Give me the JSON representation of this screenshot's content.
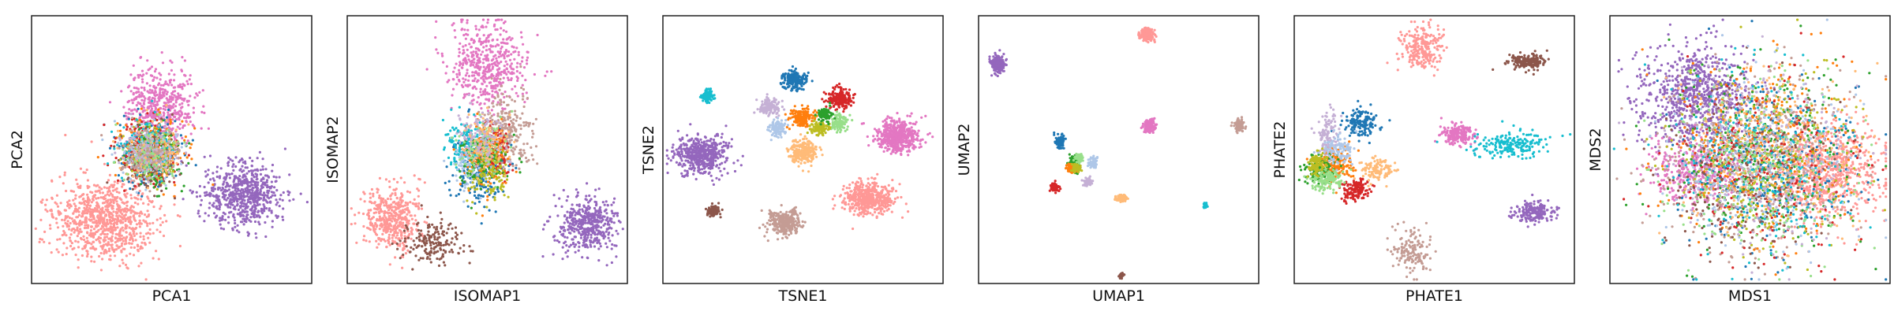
{
  "chart_data": [
    {
      "type": "scatter",
      "title": "",
      "xlabel": "PCA1",
      "ylabel": "PCA2",
      "clusters": [
        {
          "color": "#ff9896",
          "center": [
            0.26,
            0.76
          ],
          "spread": [
            0.09,
            0.075
          ],
          "n": 900
        },
        {
          "color": "#9467bd",
          "center": [
            0.76,
            0.67
          ],
          "spread": [
            0.07,
            0.06
          ],
          "n": 650
        },
        {
          "color": "#e377c2",
          "center": [
            0.46,
            0.34
          ],
          "spread": [
            0.06,
            0.07
          ],
          "n": 500
        },
        {
          "color": "#1f77b4",
          "center": [
            0.42,
            0.52
          ],
          "spread": [
            0.06,
            0.065
          ],
          "n": 200
        },
        {
          "color": "#ff7f0e",
          "center": [
            0.43,
            0.5
          ],
          "spread": [
            0.06,
            0.06
          ],
          "n": 200
        },
        {
          "color": "#d62728",
          "center": [
            0.41,
            0.51
          ],
          "spread": [
            0.05,
            0.06
          ],
          "n": 180
        },
        {
          "color": "#2ca02c",
          "center": [
            0.44,
            0.52
          ],
          "spread": [
            0.05,
            0.06
          ],
          "n": 160
        },
        {
          "color": "#8c564b",
          "center": [
            0.42,
            0.54
          ],
          "spread": [
            0.05,
            0.05
          ],
          "n": 140
        },
        {
          "color": "#bcbd22",
          "center": [
            0.43,
            0.5
          ],
          "spread": [
            0.05,
            0.05
          ],
          "n": 120
        },
        {
          "color": "#17becf",
          "center": [
            0.42,
            0.49
          ],
          "spread": [
            0.05,
            0.05
          ],
          "n": 110
        },
        {
          "color": "#aec7e8",
          "center": [
            0.42,
            0.51
          ],
          "spread": [
            0.05,
            0.05
          ],
          "n": 110
        },
        {
          "color": "#ffbb78",
          "center": [
            0.43,
            0.51
          ],
          "spread": [
            0.05,
            0.05
          ],
          "n": 110
        },
        {
          "color": "#98df8a",
          "center": [
            0.42,
            0.53
          ],
          "spread": [
            0.05,
            0.05
          ],
          "n": 100
        },
        {
          "color": "#c5b0d5",
          "center": [
            0.42,
            0.5
          ],
          "spread": [
            0.05,
            0.05
          ],
          "n": 100
        },
        {
          "color": "#c49c94",
          "center": [
            0.43,
            0.52
          ],
          "spread": [
            0.05,
            0.05
          ],
          "n": 100
        }
      ]
    },
    {
      "type": "scatter",
      "title": "",
      "xlabel": "ISOMAP1",
      "ylabel": "ISOMAP2",
      "clusters": [
        {
          "color": "#e377c2",
          "center": [
            0.5,
            0.18
          ],
          "spread": [
            0.07,
            0.08
          ],
          "n": 500
        },
        {
          "color": "#ff9896",
          "center": [
            0.16,
            0.76
          ],
          "spread": [
            0.05,
            0.055
          ],
          "n": 450
        },
        {
          "color": "#9467bd",
          "center": [
            0.86,
            0.78
          ],
          "spread": [
            0.05,
            0.055
          ],
          "n": 450
        },
        {
          "color": "#8c564b",
          "center": [
            0.3,
            0.85
          ],
          "spread": [
            0.05,
            0.04
          ],
          "n": 180
        },
        {
          "color": "#1f77b4",
          "center": [
            0.47,
            0.57
          ],
          "spread": [
            0.05,
            0.07
          ],
          "n": 250
        },
        {
          "color": "#c49c94",
          "center": [
            0.57,
            0.43
          ],
          "spread": [
            0.05,
            0.07
          ],
          "n": 250
        },
        {
          "color": "#d62728",
          "center": [
            0.52,
            0.5
          ],
          "spread": [
            0.03,
            0.05
          ],
          "n": 150
        },
        {
          "color": "#17becf",
          "center": [
            0.43,
            0.48
          ],
          "spread": [
            0.04,
            0.05
          ],
          "n": 130
        },
        {
          "color": "#ff7f0e",
          "center": [
            0.5,
            0.52
          ],
          "spread": [
            0.04,
            0.06
          ],
          "n": 140
        },
        {
          "color": "#aec7e8",
          "center": [
            0.45,
            0.55
          ],
          "spread": [
            0.04,
            0.05
          ],
          "n": 120
        },
        {
          "color": "#2ca02c",
          "center": [
            0.49,
            0.55
          ],
          "spread": [
            0.04,
            0.05
          ],
          "n": 100
        },
        {
          "color": "#98df8a",
          "center": [
            0.48,
            0.5
          ],
          "spread": [
            0.04,
            0.05
          ],
          "n": 100
        },
        {
          "color": "#bcbd22",
          "center": [
            0.51,
            0.58
          ],
          "spread": [
            0.04,
            0.05
          ],
          "n": 100
        },
        {
          "color": "#ffbb78",
          "center": [
            0.5,
            0.46
          ],
          "spread": [
            0.04,
            0.05
          ],
          "n": 100
        },
        {
          "color": "#c5b0d5",
          "center": [
            0.47,
            0.45
          ],
          "spread": [
            0.04,
            0.05
          ],
          "n": 100
        }
      ]
    },
    {
      "type": "scatter",
      "title": "",
      "xlabel": "TSNE1",
      "ylabel": "TSNE2",
      "clusters": [
        {
          "color": "#9467bd",
          "center": [
            0.14,
            0.52
          ],
          "spread": [
            0.045,
            0.035
          ],
          "n": 500
        },
        {
          "color": "#e377c2",
          "center": [
            0.84,
            0.45
          ],
          "spread": [
            0.04,
            0.03
          ],
          "n": 500
        },
        {
          "color": "#ff9896",
          "center": [
            0.73,
            0.68
          ],
          "spread": [
            0.045,
            0.03
          ],
          "n": 500
        },
        {
          "color": "#c49c94",
          "center": [
            0.44,
            0.77
          ],
          "spread": [
            0.03,
            0.022
          ],
          "n": 300
        },
        {
          "color": "#ffbb78",
          "center": [
            0.5,
            0.51
          ],
          "spread": [
            0.025,
            0.022
          ],
          "n": 250
        },
        {
          "color": "#1f77b4",
          "center": [
            0.47,
            0.24
          ],
          "spread": [
            0.022,
            0.018
          ],
          "n": 200
        },
        {
          "color": "#d62728",
          "center": [
            0.63,
            0.31
          ],
          "spread": [
            0.022,
            0.018
          ],
          "n": 200
        },
        {
          "color": "#ff7f0e",
          "center": [
            0.5,
            0.38
          ],
          "spread": [
            0.02,
            0.018
          ],
          "n": 180
        },
        {
          "color": "#c5b0d5",
          "center": [
            0.38,
            0.34
          ],
          "spread": [
            0.018,
            0.015
          ],
          "n": 150
        },
        {
          "color": "#98df8a",
          "center": [
            0.63,
            0.4
          ],
          "spread": [
            0.015,
            0.015
          ],
          "n": 120
        },
        {
          "color": "#aec7e8",
          "center": [
            0.41,
            0.42
          ],
          "spread": [
            0.015,
            0.015
          ],
          "n": 120
        },
        {
          "color": "#bcbd22",
          "center": [
            0.56,
            0.42
          ],
          "spread": [
            0.014,
            0.012
          ],
          "n": 110
        },
        {
          "color": "#2ca02c",
          "center": [
            0.58,
            0.37
          ],
          "spread": [
            0.012,
            0.012
          ],
          "n": 100
        },
        {
          "color": "#17becf",
          "center": [
            0.16,
            0.3
          ],
          "spread": [
            0.01,
            0.012
          ],
          "n": 100
        },
        {
          "color": "#8c564b",
          "center": [
            0.18,
            0.73
          ],
          "spread": [
            0.012,
            0.01
          ],
          "n": 100
        }
      ]
    },
    {
      "type": "scatter",
      "title": "",
      "xlabel": "UMAP1",
      "ylabel": "UMAP2",
      "clusters": [
        {
          "color": "#9467bd",
          "center": [
            0.07,
            0.18
          ],
          "spread": [
            0.012,
            0.015
          ],
          "n": 200
        },
        {
          "color": "#ff9896",
          "center": [
            0.6,
            0.07
          ],
          "spread": [
            0.012,
            0.012
          ],
          "n": 200
        },
        {
          "color": "#e377c2",
          "center": [
            0.61,
            0.41
          ],
          "spread": [
            0.01,
            0.012
          ],
          "n": 180
        },
        {
          "color": "#c49c94",
          "center": [
            0.93,
            0.41
          ],
          "spread": [
            0.008,
            0.01
          ],
          "n": 120
        },
        {
          "color": "#17becf",
          "center": [
            0.81,
            0.71
          ],
          "spread": [
            0.003,
            0.005
          ],
          "n": 30
        },
        {
          "color": "#ffbb78",
          "center": [
            0.51,
            0.68
          ],
          "spread": [
            0.01,
            0.006
          ],
          "n": 100
        },
        {
          "color": "#8c564b",
          "center": [
            0.51,
            0.97
          ],
          "spread": [
            0.004,
            0.004
          ],
          "n": 40
        },
        {
          "color": "#1f77b4",
          "center": [
            0.29,
            0.47
          ],
          "spread": [
            0.008,
            0.012
          ],
          "n": 80
        },
        {
          "color": "#d62728",
          "center": [
            0.27,
            0.64
          ],
          "spread": [
            0.008,
            0.008
          ],
          "n": 80
        },
        {
          "color": "#2ca02c",
          "center": [
            0.34,
            0.55
          ],
          "spread": [
            0.008,
            0.015
          ],
          "n": 80
        },
        {
          "color": "#ff7f0e",
          "center": [
            0.33,
            0.57
          ],
          "spread": [
            0.008,
            0.008
          ],
          "n": 80
        },
        {
          "color": "#98df8a",
          "center": [
            0.36,
            0.53
          ],
          "spread": [
            0.008,
            0.008
          ],
          "n": 60
        },
        {
          "color": "#bcbd22",
          "center": [
            0.35,
            0.57
          ],
          "spread": [
            0.008,
            0.008
          ],
          "n": 60
        },
        {
          "color": "#aec7e8",
          "center": [
            0.41,
            0.55
          ],
          "spread": [
            0.008,
            0.01
          ],
          "n": 60
        },
        {
          "color": "#c5b0d5",
          "center": [
            0.39,
            0.62
          ],
          "spread": [
            0.008,
            0.008
          ],
          "n": 60
        }
      ]
    },
    {
      "type": "scatter",
      "title": "",
      "xlabel": "PHATE1",
      "ylabel": "PHATE2",
      "clusters": [
        {
          "color": "#ff9896",
          "center": [
            0.46,
            0.12
          ],
          "spread": [
            0.035,
            0.04
          ],
          "n": 250
        },
        {
          "color": "#8c564b",
          "center": [
            0.83,
            0.17
          ],
          "spread": [
            0.035,
            0.015
          ],
          "n": 180
        },
        {
          "color": "#e377c2",
          "center": [
            0.58,
            0.44
          ],
          "spread": [
            0.03,
            0.02
          ],
          "n": 200
        },
        {
          "color": "#17becf",
          "center": [
            0.77,
            0.48
          ],
          "spread": [
            0.07,
            0.025
          ],
          "n": 200
        },
        {
          "color": "#9467bd",
          "center": [
            0.86,
            0.73
          ],
          "spread": [
            0.035,
            0.02
          ],
          "n": 200
        },
        {
          "color": "#c49c94",
          "center": [
            0.42,
            0.88
          ],
          "spread": [
            0.035,
            0.04
          ],
          "n": 150
        },
        {
          "color": "#1f77b4",
          "center": [
            0.24,
            0.4
          ],
          "spread": [
            0.03,
            0.03
          ],
          "n": 150
        },
        {
          "color": "#c5b0d5",
          "center": [
            0.12,
            0.45
          ],
          "spread": [
            0.02,
            0.05
          ],
          "n": 120
        },
        {
          "color": "#ff7f0e",
          "center": [
            0.15,
            0.56
          ],
          "spread": [
            0.035,
            0.03
          ],
          "n": 160
        },
        {
          "color": "#d62728",
          "center": [
            0.22,
            0.65
          ],
          "spread": [
            0.025,
            0.02
          ],
          "n": 140
        },
        {
          "color": "#2ca02c",
          "center": [
            0.09,
            0.57
          ],
          "spread": [
            0.03,
            0.025
          ],
          "n": 120
        },
        {
          "color": "#98df8a",
          "center": [
            0.12,
            0.61
          ],
          "spread": [
            0.03,
            0.025
          ],
          "n": 120
        },
        {
          "color": "#ffbb78",
          "center": [
            0.3,
            0.58
          ],
          "spread": [
            0.03,
            0.02
          ],
          "n": 120
        },
        {
          "color": "#bcbd22",
          "center": [
            0.08,
            0.55
          ],
          "spread": [
            0.02,
            0.02
          ],
          "n": 100
        },
        {
          "color": "#aec7e8",
          "center": [
            0.16,
            0.5
          ],
          "spread": [
            0.025,
            0.025
          ],
          "n": 100
        }
      ]
    },
    {
      "type": "scatter",
      "title": "",
      "xlabel": "MDS1",
      "ylabel": "MDS2",
      "clusters": [
        {
          "color": "#9467bd",
          "center": [
            0.3,
            0.3
          ],
          "spread": [
            0.1,
            0.09
          ],
          "n": 800
        },
        {
          "color": "#ff9896",
          "center": [
            0.78,
            0.58
          ],
          "spread": [
            0.1,
            0.09
          ],
          "n": 800
        },
        {
          "color": "#e377c2",
          "center": [
            0.3,
            0.58
          ],
          "spread": [
            0.08,
            0.06
          ],
          "n": 400
        },
        {
          "color": "#c49c94",
          "center": [
            0.5,
            0.55
          ],
          "spread": [
            0.17,
            0.17
          ],
          "n": 450
        },
        {
          "color": "#1f77b4",
          "center": [
            0.55,
            0.55
          ],
          "spread": [
            0.16,
            0.17
          ],
          "n": 300
        },
        {
          "color": "#ff7f0e",
          "center": [
            0.55,
            0.5
          ],
          "spread": [
            0.16,
            0.17
          ],
          "n": 300
        },
        {
          "color": "#d62728",
          "center": [
            0.52,
            0.55
          ],
          "spread": [
            0.16,
            0.17
          ],
          "n": 250
        },
        {
          "color": "#2ca02c",
          "center": [
            0.55,
            0.52
          ],
          "spread": [
            0.16,
            0.17
          ],
          "n": 250
        },
        {
          "color": "#8c564b",
          "center": [
            0.5,
            0.58
          ],
          "spread": [
            0.16,
            0.17
          ],
          "n": 250
        },
        {
          "color": "#bcbd22",
          "center": [
            0.55,
            0.52
          ],
          "spread": [
            0.16,
            0.17
          ],
          "n": 250
        },
        {
          "color": "#17becf",
          "center": [
            0.53,
            0.55
          ],
          "spread": [
            0.16,
            0.17
          ],
          "n": 250
        },
        {
          "color": "#aec7e8",
          "center": [
            0.55,
            0.52
          ],
          "spread": [
            0.16,
            0.17
          ],
          "n": 250
        },
        {
          "color": "#ffbb78",
          "center": [
            0.55,
            0.5
          ],
          "spread": [
            0.16,
            0.17
          ],
          "n": 250
        },
        {
          "color": "#98df8a",
          "center": [
            0.52,
            0.55
          ],
          "spread": [
            0.16,
            0.17
          ],
          "n": 250
        },
        {
          "color": "#c5b0d5",
          "center": [
            0.55,
            0.52
          ],
          "spread": [
            0.16,
            0.17
          ],
          "n": 250
        }
      ]
    }
  ]
}
